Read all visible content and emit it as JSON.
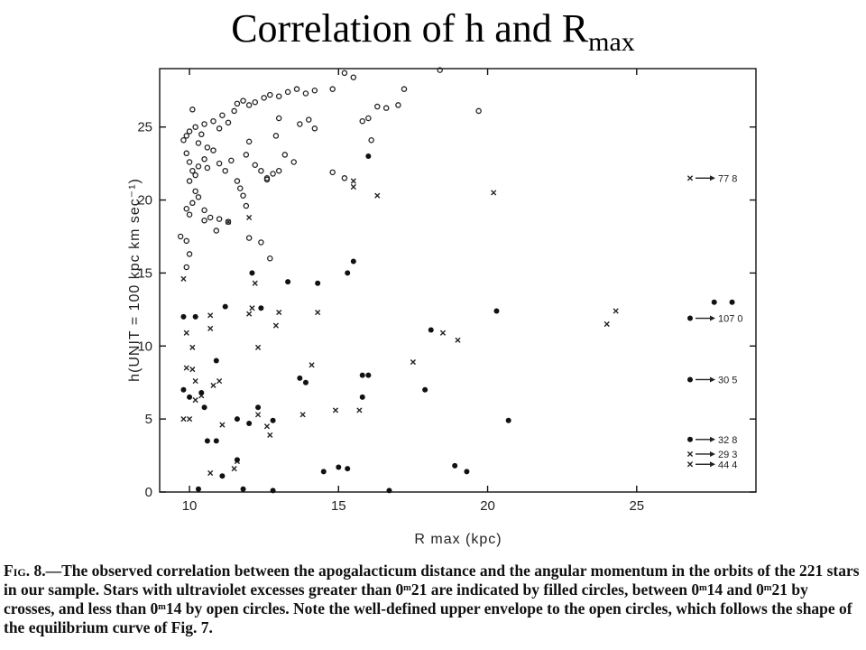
{
  "slide": {
    "title_main": "Correlation of  h  and  R",
    "title_sub": "max"
  },
  "caption": {
    "fig_label": "Fig. 8.",
    "text": "—The observed correlation between the apogalacticum distance and the angular momentum in the orbits of the 221 stars in our sample. Stars with ultraviolet excesses greater than 0ᵐ21 are indicated by filled circles, between 0ᵐ14 and 0ᵐ21 by crosses, and less than 0ᵐ14 by open circles. Note the well-defined upper envelope to the open circles, which follows the shape of the equilibrium curve of Fig. 7."
  },
  "chart_data": {
    "type": "scatter",
    "xlabel": "R max  (kpc)",
    "ylabel": "h(UNIT = 100 kpc km sec⁻¹)",
    "xlim": [
      9,
      29
    ],
    "ylim": [
      0,
      29
    ],
    "xticks": [
      10,
      15,
      20,
      25
    ],
    "yticks": [
      0,
      5,
      10,
      15,
      20,
      25
    ],
    "grid": false,
    "series": [
      {
        "marker": "open-circle",
        "points": [
          [
            9.8,
            24.1
          ],
          [
            9.9,
            24.4
          ],
          [
            10.0,
            24.7
          ],
          [
            10.1,
            26.2
          ],
          [
            10.2,
            25.0
          ],
          [
            10.3,
            23.9
          ],
          [
            10.4,
            24.5
          ],
          [
            10.5,
            25.2
          ],
          [
            10.6,
            23.6
          ],
          [
            10.8,
            25.4
          ],
          [
            11.0,
            24.9
          ],
          [
            11.1,
            25.8
          ],
          [
            11.3,
            25.3
          ],
          [
            11.5,
            26.1
          ],
          [
            11.6,
            26.6
          ],
          [
            11.8,
            26.8
          ],
          [
            12.0,
            26.5
          ],
          [
            12.2,
            26.7
          ],
          [
            12.5,
            27.0
          ],
          [
            12.7,
            27.2
          ],
          [
            13.0,
            27.1
          ],
          [
            13.3,
            27.4
          ],
          [
            13.6,
            27.6
          ],
          [
            13.9,
            27.3
          ],
          [
            14.2,
            27.5
          ],
          [
            14.8,
            27.6
          ],
          [
            15.2,
            28.7
          ],
          [
            15.5,
            28.4
          ],
          [
            16.6,
            26.3
          ],
          [
            17.0,
            26.5
          ],
          [
            17.2,
            27.6
          ],
          [
            18.4,
            28.9
          ],
          [
            19.7,
            26.1
          ],
          [
            9.9,
            23.2
          ],
          [
            10.0,
            22.6
          ],
          [
            10.1,
            22.0
          ],
          [
            10.0,
            21.3
          ],
          [
            10.2,
            21.7
          ],
          [
            10.3,
            22.3
          ],
          [
            10.5,
            22.8
          ],
          [
            10.6,
            22.2
          ],
          [
            10.8,
            23.4
          ],
          [
            11.0,
            22.5
          ],
          [
            11.2,
            22.0
          ],
          [
            11.4,
            22.7
          ],
          [
            11.6,
            21.3
          ],
          [
            11.7,
            20.8
          ],
          [
            11.9,
            23.1
          ],
          [
            12.0,
            24.0
          ],
          [
            12.2,
            22.4
          ],
          [
            12.4,
            22.0
          ],
          [
            12.6,
            21.5
          ],
          [
            12.8,
            21.8
          ],
          [
            13.0,
            22.0
          ],
          [
            13.2,
            23.1
          ],
          [
            13.5,
            22.6
          ],
          [
            13.7,
            25.2
          ],
          [
            14.0,
            25.5
          ],
          [
            14.2,
            24.9
          ],
          [
            14.8,
            21.9
          ],
          [
            15.2,
            21.5
          ],
          [
            15.8,
            25.4
          ],
          [
            16.0,
            25.6
          ],
          [
            16.1,
            24.1
          ],
          [
            16.3,
            26.4
          ],
          [
            13.0,
            25.6
          ],
          [
            12.9,
            24.4
          ],
          [
            9.9,
            19.4
          ],
          [
            10.0,
            19.0
          ],
          [
            10.1,
            19.8
          ],
          [
            10.2,
            20.6
          ],
          [
            10.3,
            20.2
          ],
          [
            10.5,
            19.3
          ],
          [
            10.5,
            18.6
          ],
          [
            10.7,
            18.8
          ],
          [
            11.0,
            18.7
          ],
          [
            11.3,
            18.5
          ],
          [
            11.8,
            20.3
          ],
          [
            11.9,
            19.6
          ],
          [
            12.6,
            21.4
          ],
          [
            9.7,
            17.5
          ],
          [
            9.9,
            17.2
          ],
          [
            10.0,
            16.3
          ],
          [
            10.9,
            17.9
          ],
          [
            12.0,
            17.4
          ],
          [
            12.4,
            17.1
          ],
          [
            12.7,
            16.0
          ],
          [
            9.9,
            15.4
          ]
        ]
      },
      {
        "marker": "cross",
        "points": [
          [
            9.8,
            14.6
          ],
          [
            9.9,
            10.9
          ],
          [
            10.1,
            9.9
          ],
          [
            9.9,
            8.5
          ],
          [
            10.1,
            8.4
          ],
          [
            10.2,
            7.6
          ],
          [
            9.8,
            5.0
          ],
          [
            10.0,
            5.0
          ],
          [
            10.2,
            6.3
          ],
          [
            10.4,
            6.6
          ],
          [
            10.7,
            12.1
          ],
          [
            10.7,
            11.2
          ],
          [
            10.8,
            7.3
          ],
          [
            11.0,
            7.6
          ],
          [
            11.1,
            4.6
          ],
          [
            11.5,
            1.6
          ],
          [
            11.6,
            2.1
          ],
          [
            10.7,
            1.3
          ],
          [
            11.3,
            18.5
          ],
          [
            12.0,
            18.8
          ],
          [
            12.2,
            14.3
          ],
          [
            12.0,
            12.2
          ],
          [
            12.1,
            12.6
          ],
          [
            12.3,
            9.9
          ],
          [
            12.3,
            5.3
          ],
          [
            12.6,
            4.5
          ],
          [
            12.7,
            3.9
          ],
          [
            12.9,
            11.4
          ],
          [
            13.0,
            12.3
          ],
          [
            13.8,
            5.3
          ],
          [
            14.1,
            8.7
          ],
          [
            14.3,
            12.3
          ],
          [
            15.5,
            21.3
          ],
          [
            15.5,
            20.9
          ],
          [
            16.3,
            20.3
          ],
          [
            15.7,
            5.6
          ],
          [
            17.5,
            8.9
          ],
          [
            18.5,
            10.9
          ],
          [
            19.0,
            10.4
          ],
          [
            20.2,
            20.5
          ],
          [
            24.0,
            11.5
          ],
          [
            24.3,
            12.4
          ],
          [
            14.9,
            5.6
          ]
        ]
      },
      {
        "marker": "filled-circle",
        "points": [
          [
            9.8,
            12.0
          ],
          [
            10.2,
            12.0
          ],
          [
            9.8,
            7.0
          ],
          [
            10.0,
            6.5
          ],
          [
            10.4,
            6.8
          ],
          [
            10.5,
            5.8
          ],
          [
            10.9,
            9.0
          ],
          [
            10.9,
            3.5
          ],
          [
            11.2,
            12.7
          ],
          [
            11.6,
            5.0
          ],
          [
            11.6,
            2.2
          ],
          [
            11.8,
            0.2
          ],
          [
            12.0,
            4.7
          ],
          [
            12.1,
            15.0
          ],
          [
            12.3,
            5.8
          ],
          [
            12.4,
            12.6
          ],
          [
            12.8,
            4.9
          ],
          [
            13.3,
            14.4
          ],
          [
            13.7,
            7.8
          ],
          [
            13.9,
            7.5
          ],
          [
            14.3,
            14.3
          ],
          [
            14.5,
            1.4
          ],
          [
            15.3,
            15.0
          ],
          [
            15.5,
            15.8
          ],
          [
            15.8,
            8.0
          ],
          [
            16.0,
            8.0
          ],
          [
            15.8,
            6.5
          ],
          [
            16.7,
            0.1
          ],
          [
            17.9,
            7.0
          ],
          [
            18.1,
            11.1
          ],
          [
            18.9,
            1.8
          ],
          [
            19.3,
            1.4
          ],
          [
            20.3,
            12.4
          ],
          [
            20.7,
            4.9
          ],
          [
            27.6,
            13.0
          ],
          [
            28.2,
            13.0
          ],
          [
            10.3,
            0.2
          ],
          [
            10.6,
            3.5
          ],
          [
            11.1,
            1.1
          ],
          [
            12.8,
            0.1
          ],
          [
            15.0,
            1.7
          ],
          [
            16.0,
            23.0
          ],
          [
            15.3,
            1.6
          ]
        ]
      }
    ],
    "annotations": [
      {
        "marker": "cross",
        "y": 21.5,
        "label": "77 8"
      },
      {
        "marker": "filled-circle",
        "y": 11.9,
        "label": "107 0"
      },
      {
        "marker": "filled-circle",
        "y": 7.7,
        "label": "30 5"
      },
      {
        "marker": "filled-circle",
        "y": 3.6,
        "label": "32 8"
      },
      {
        "marker": "cross",
        "y": 2.6,
        "label": "29 3"
      },
      {
        "marker": "cross",
        "y": 1.9,
        "label": "44 4"
      }
    ]
  }
}
